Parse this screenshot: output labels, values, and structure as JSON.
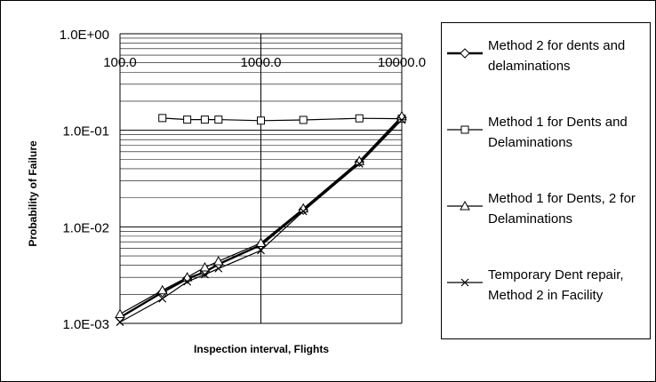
{
  "chart_data": {
    "type": "line",
    "title": "",
    "xlabel": "Inspection interval, Flights",
    "ylabel": "Probability of Failure",
    "x_scale": "log",
    "y_scale": "log",
    "xlim": [
      100,
      10000
    ],
    "ylim": [
      0.001,
      1
    ],
    "x_ticks": [
      "100.0",
      "1000.0",
      "10000.0"
    ],
    "y_ticks": [
      "1.0E+00",
      "1.0E-01",
      "1.0E-02",
      "1.0E-03"
    ],
    "grid": true,
    "legend_position": "right",
    "series": [
      {
        "name": "Method 2 for dents and delaminations",
        "marker": "diamond",
        "x": [
          100,
          200,
          300,
          400,
          500,
          1000,
          2000,
          5000,
          10000
        ],
        "y": [
          0.00115,
          0.0021,
          0.0029,
          0.0034,
          0.0041,
          0.0065,
          0.015,
          0.047,
          0.135
        ]
      },
      {
        "name": "Method 1 for Dents and Delaminations",
        "marker": "square",
        "x": [
          200,
          300,
          400,
          500,
          1000,
          2000,
          5000,
          10000
        ],
        "y": [
          0.134,
          0.129,
          0.129,
          0.129,
          0.126,
          0.128,
          0.133,
          0.132
        ]
      },
      {
        "name": "Method 1 for Dents, 2 for Delaminations",
        "marker": "triangle",
        "x": [
          100,
          200,
          300,
          400,
          500,
          1000,
          2000,
          5000,
          10000
        ],
        "y": [
          0.00125,
          0.0022,
          0.003,
          0.0038,
          0.0044,
          0.0068,
          0.0155,
          0.048,
          0.14
        ]
      },
      {
        "name": "Temporary Dent repair, Method 2 in Facility",
        "marker": "x",
        "x": [
          100,
          200,
          300,
          400,
          500,
          1000,
          2000,
          5000,
          10000
        ],
        "y": [
          0.00103,
          0.0018,
          0.0027,
          0.0032,
          0.0037,
          0.0057,
          0.0145,
          0.045,
          0.128
        ]
      }
    ]
  }
}
